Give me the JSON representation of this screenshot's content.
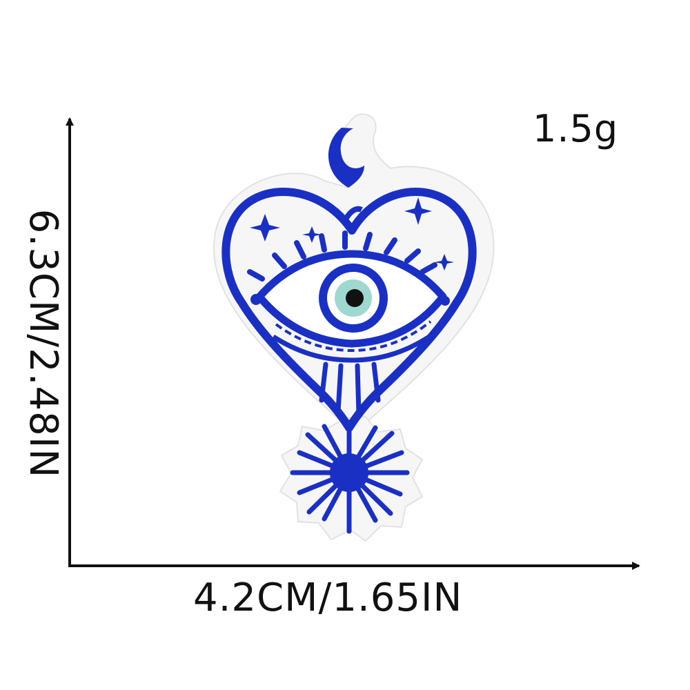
{
  "product": {
    "weight": "1.5g",
    "width_dimension": "4.2CM/1.65IN",
    "height_dimension": "6.3CM/2.48IN"
  },
  "colors": {
    "thread_blue": "#1a2fc4",
    "iris_mint": "#9fd8cf",
    "pupil": "#111111",
    "fabric": "#f7f7f7",
    "axis": "#111111"
  },
  "icons": [
    "evil-eye-heart-patch-icon",
    "crescent-moon-icon",
    "sun-icon"
  ]
}
